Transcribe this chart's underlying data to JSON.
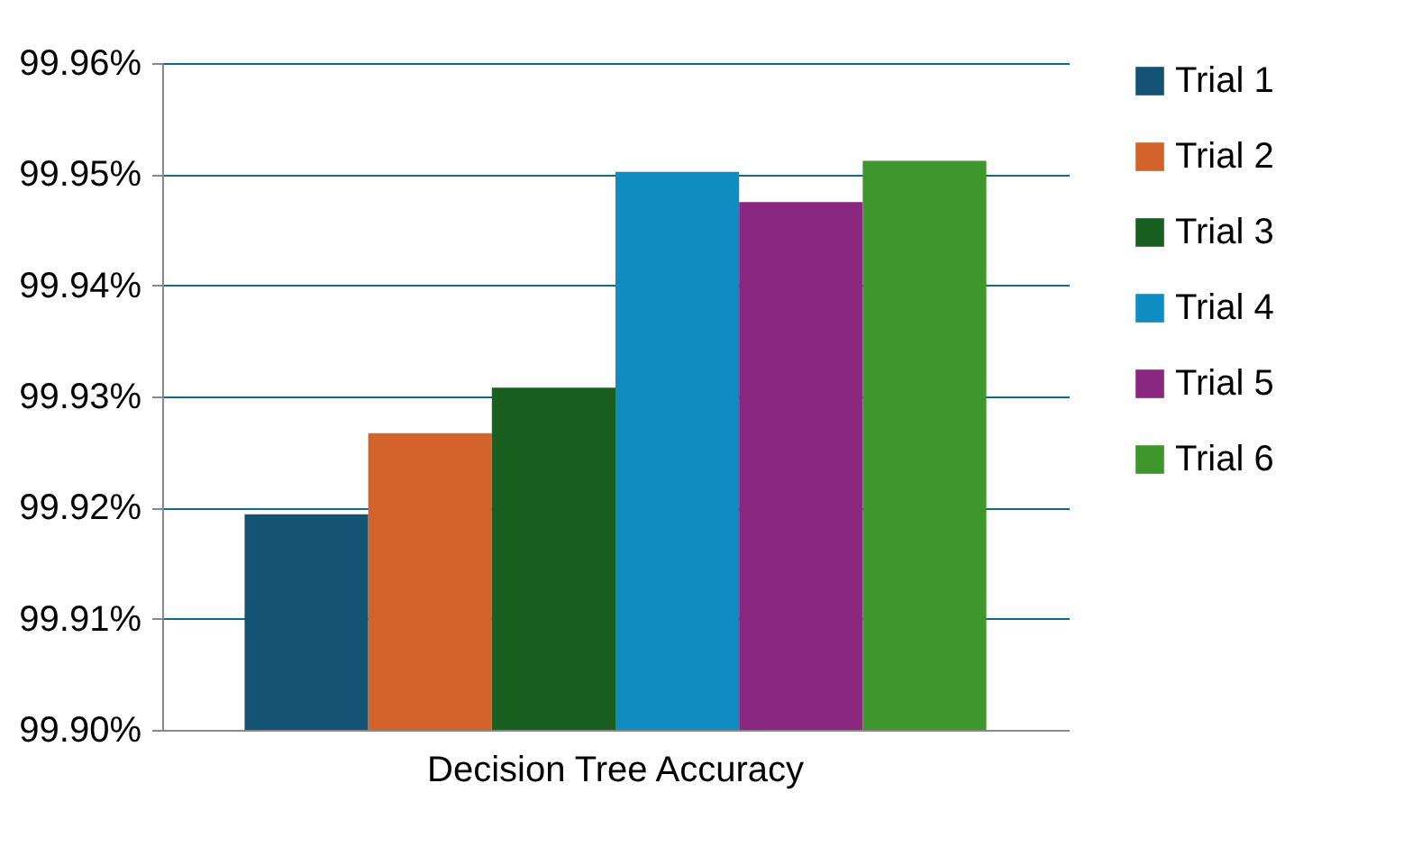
{
  "chart_data": {
    "type": "bar",
    "categories": [
      "Decision Tree Accuracy"
    ],
    "series": [
      {
        "name": "Trial 1",
        "color": "#145374",
        "values": [
          99.9194
        ]
      },
      {
        "name": "Trial 2",
        "color": "#d3632b",
        "values": [
          99.9267
        ]
      },
      {
        "name": "Trial 3",
        "color": "#195f20",
        "values": [
          99.9308
        ]
      },
      {
        "name": "Trial 4",
        "color": "#0f8dc3",
        "values": [
          99.9502
        ]
      },
      {
        "name": "Trial 5",
        "color": "#8a2780",
        "values": [
          99.9475
        ]
      },
      {
        "name": "Trial 6",
        "color": "#3f962c",
        "values": [
          99.9512
        ]
      }
    ],
    "ylim": [
      99.9,
      99.96
    ],
    "yticks": [
      {
        "value": 99.9,
        "label": "99.90%"
      },
      {
        "value": 99.91,
        "label": "99.91%"
      },
      {
        "value": 99.92,
        "label": "99.92%"
      },
      {
        "value": 99.93,
        "label": "99.93%"
      },
      {
        "value": 99.94,
        "label": "99.94%"
      },
      {
        "value": 99.95,
        "label": "99.95%"
      },
      {
        "value": 99.96,
        "label": "99.96%"
      }
    ],
    "grid": "y",
    "legend": "right"
  }
}
